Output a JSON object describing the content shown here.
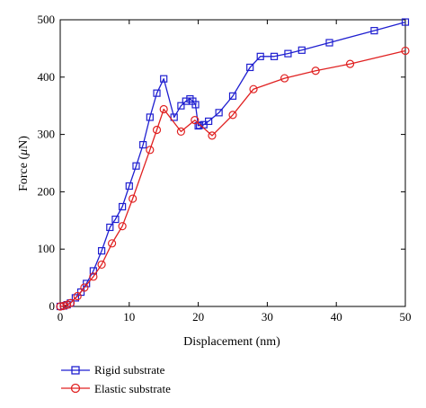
{
  "chart_data": {
    "type": "line",
    "xlabel_main": "Displacement (nm)",
    "ylabel_pre": "Force (",
    "ylabel_mu": "μ",
    "ylabel_post": "N)",
    "xlim": [
      0,
      50
    ],
    "ylim": [
      0,
      500
    ],
    "xticks": [
      0,
      10,
      20,
      30,
      40,
      50
    ],
    "yticks": [
      0,
      100,
      200,
      300,
      400,
      500
    ],
    "grid": false,
    "legend_position": "bottom-left, below plot",
    "series": [
      {
        "name": "Rigid substrate",
        "color": "#1f1fd0",
        "marker": "square",
        "x": [
          0,
          0.5,
          1,
          1.5,
          2.2,
          3,
          3.8,
          4.8,
          6,
          7.2,
          8,
          9,
          10,
          11,
          12,
          13,
          14,
          15,
          16.5,
          17.5,
          18.2,
          18.8,
          19.2,
          19.6,
          20,
          20.2,
          20.8,
          21.5,
          23,
          25,
          27.5,
          29,
          31,
          33,
          35,
          39,
          45.5,
          50
        ],
        "y": [
          0,
          1,
          3,
          6,
          15,
          25,
          40,
          62,
          97,
          138,
          152,
          174,
          210,
          245,
          282,
          330,
          372,
          397,
          330,
          350,
          358,
          362,
          358,
          352,
          315,
          316,
          317,
          323,
          338,
          367,
          417,
          436,
          436,
          441,
          447,
          460,
          481,
          496
        ]
      },
      {
        "name": "Elastic substrate",
        "color": "#e02020",
        "marker": "circle",
        "x": [
          0,
          0.5,
          1,
          1.5,
          2.5,
          3.5,
          4.8,
          6,
          7.5,
          9,
          10.5,
          13,
          14,
          15,
          17.5,
          19.5,
          22,
          25,
          28,
          32.5,
          37,
          42,
          50
        ],
        "y": [
          0,
          1,
          3,
          6,
          18,
          33,
          52,
          73,
          110,
          140,
          188,
          273,
          308,
          344,
          305,
          325,
          298,
          334,
          379,
          398,
          411,
          423,
          446
        ]
      }
    ]
  }
}
